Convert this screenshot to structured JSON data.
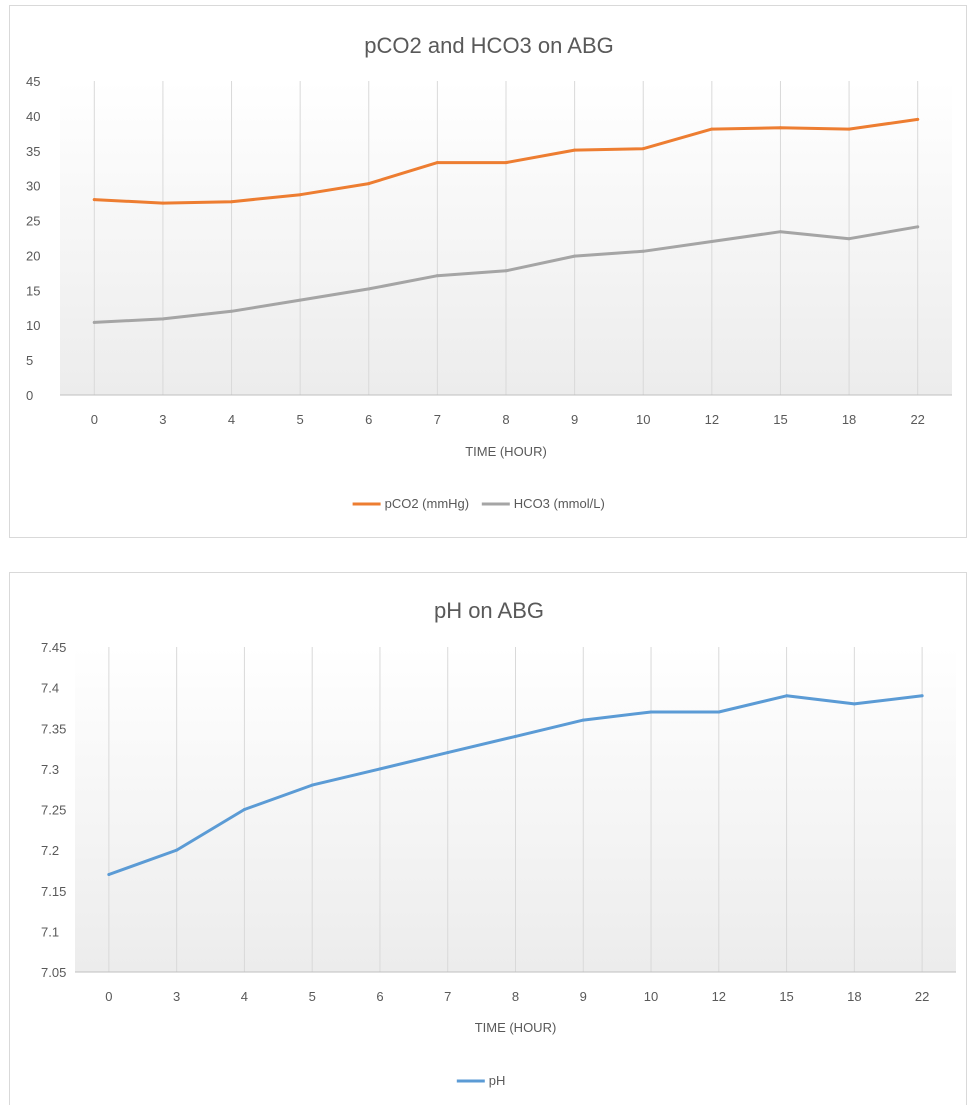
{
  "charts": [
    {
      "type": "line",
      "title": "pCO2 and HCO3 on ABG",
      "xlabel": "TIME (HOUR)",
      "ylabel": "",
      "categories": [
        "0",
        "3",
        "4",
        "5",
        "6",
        "7",
        "8",
        "9",
        "10",
        "12",
        "15",
        "18",
        "22"
      ],
      "y_ticks": [
        "0",
        "5",
        "10",
        "15",
        "20",
        "25",
        "30",
        "35",
        "40",
        "45"
      ],
      "ylim": [
        0,
        45
      ],
      "grid": "vertical",
      "legend_position": "bottom",
      "series": [
        {
          "name": "pCO2 (mmHg)",
          "color": "#ed7d31",
          "values": [
            28,
            27.5,
            27.7,
            28.7,
            30.3,
            33.3,
            33.3,
            35.1,
            35.3,
            38.1,
            38.3,
            38.1,
            39.5
          ]
        },
        {
          "name": "HCO3 (mmol/L)",
          "color": "#a5a5a5",
          "values": [
            10.4,
            10.9,
            12.0,
            13.6,
            15.2,
            17.1,
            17.8,
            19.9,
            20.6,
            22.0,
            23.4,
            22.4,
            24.1
          ]
        }
      ]
    },
    {
      "type": "line",
      "title": "pH on ABG",
      "xlabel": "TIME (HOUR)",
      "ylabel": "",
      "categories": [
        "0",
        "3",
        "4",
        "5",
        "6",
        "7",
        "8",
        "9",
        "10",
        "12",
        "15",
        "18",
        "22"
      ],
      "y_ticks": [
        "7.05",
        "7.1",
        "7.15",
        "7.2",
        "7.25",
        "7.3",
        "7.35",
        "7.4",
        "7.45"
      ],
      "ylim": [
        7.05,
        7.45
      ],
      "grid": "vertical",
      "legend_position": "bottom",
      "series": [
        {
          "name": "pH",
          "color": "#5b9bd5",
          "values": [
            7.17,
            7.2,
            7.25,
            7.28,
            7.3,
            7.32,
            7.34,
            7.36,
            7.37,
            7.37,
            7.39,
            7.38,
            7.39
          ]
        }
      ]
    }
  ],
  "chart_data": [
    {
      "type": "line",
      "title": "pCO2 and HCO3 on ABG",
      "xlabel": "TIME (HOUR)",
      "ylabel": "",
      "categories": [
        "0",
        "3",
        "4",
        "5",
        "6",
        "7",
        "8",
        "9",
        "10",
        "12",
        "15",
        "18",
        "22"
      ],
      "ylim": [
        0,
        45
      ],
      "grid": "vertical",
      "legend": "bottom",
      "series": [
        {
          "name": "pCO2 (mmHg)",
          "values": [
            28,
            27.5,
            27.7,
            28.7,
            30.3,
            33.3,
            33.3,
            35.1,
            35.3,
            38.1,
            38.3,
            38.1,
            39.5
          ]
        },
        {
          "name": "HCO3 (mmol/L)",
          "values": [
            10.4,
            10.9,
            12.0,
            13.6,
            15.2,
            17.1,
            17.8,
            19.9,
            20.6,
            22.0,
            23.4,
            22.4,
            24.1
          ]
        }
      ]
    },
    {
      "type": "line",
      "title": "pH on ABG",
      "xlabel": "TIME (HOUR)",
      "ylabel": "",
      "categories": [
        "0",
        "3",
        "4",
        "5",
        "6",
        "7",
        "8",
        "9",
        "10",
        "12",
        "15",
        "18",
        "22"
      ],
      "ylim": [
        7.05,
        7.45
      ],
      "grid": "vertical",
      "legend": "bottom",
      "series": [
        {
          "name": "pH",
          "values": [
            7.17,
            7.2,
            7.25,
            7.28,
            7.3,
            7.32,
            7.34,
            7.36,
            7.37,
            7.37,
            7.39,
            7.38,
            7.39
          ]
        }
      ]
    }
  ]
}
